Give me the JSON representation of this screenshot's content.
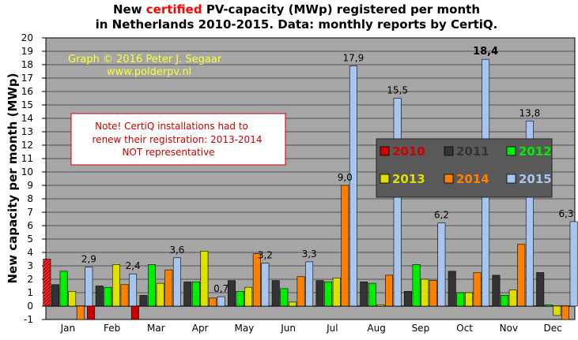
{
  "title": {
    "line1_pre": "New ",
    "line1_red": "certified",
    "line1_post": " PV-capacity (MWp) registered per month",
    "line2": "in Netherlands 2010-2015. Data: monthly  reports by CertiQ."
  },
  "credit": {
    "line1": "Graph © 2016 Peter J. Segaar",
    "line2": "www.polderpv.nl"
  },
  "note": {
    "line1": "Note! CertiQ installations  had to",
    "line2": "renew their registration: 2013-2014",
    "line3": "NOT representative"
  },
  "colors": {
    "plot_bg": "#a6a6a6",
    "legend_bg": "#595959",
    "2010": "#cc0000",
    "2011": "#333333",
    "2012": "#00ee00",
    "2013": "#e0e000",
    "2014": "#ff7f00",
    "2015": "#a6c6f0"
  },
  "chart_data": {
    "type": "bar",
    "ylabel": "New capacity per month (MWp)",
    "ylim": [
      -1,
      20
    ],
    "yticks": [
      "-1",
      "0",
      "1",
      "2",
      "3",
      "4",
      "5",
      "6",
      "7",
      "8",
      "9",
      "10",
      "11",
      "12",
      "13",
      "14",
      "15",
      "16",
      "17",
      "18",
      "19",
      "20"
    ],
    "grid": true,
    "legend_placement": "center-right",
    "categories": [
      "Jan",
      "Feb",
      "Mar",
      "Apr",
      "May",
      "Jun",
      "Jul",
      "Aug",
      "Sep",
      "Oct",
      "Nov",
      "Dec"
    ],
    "series": [
      {
        "name": "2010",
        "values": [
          3.5,
          -1.0,
          -1.0,
          null,
          null,
          null,
          null,
          null,
          null,
          null,
          null,
          null
        ]
      },
      {
        "name": "2011",
        "values": [
          1.6,
          1.5,
          0.8,
          1.8,
          1.9,
          1.9,
          1.9,
          1.8,
          1.1,
          2.6,
          2.3,
          2.5
        ]
      },
      {
        "name": "2012",
        "values": [
          2.6,
          1.4,
          3.1,
          1.8,
          1.1,
          1.3,
          1.8,
          1.7,
          3.1,
          1.0,
          0.8,
          0.1
        ]
      },
      {
        "name": "2013",
        "values": [
          1.1,
          3.1,
          1.7,
          4.1,
          1.4,
          0.3,
          2.1,
          0.1,
          2.0,
          1.0,
          1.2,
          -0.7
        ]
      },
      {
        "name": "2014",
        "values": [
          -1.0,
          1.6,
          2.7,
          0.6,
          3.9,
          2.2,
          9.0,
          2.3,
          1.9,
          2.5,
          4.6,
          -1.0
        ]
      },
      {
        "name": "2015",
        "values": [
          2.9,
          2.4,
          3.6,
          0.7,
          3.2,
          3.3,
          17.9,
          15.5,
          6.2,
          18.4,
          13.8,
          6.3
        ]
      }
    ],
    "data_labels": [
      {
        "series": "2015",
        "category": "Jan",
        "text": "2,9"
      },
      {
        "series": "2015",
        "category": "Feb",
        "text": "2,4"
      },
      {
        "series": "2015",
        "category": "Mar",
        "text": "3,6"
      },
      {
        "series": "2015",
        "category": "Apr",
        "text": "0,7"
      },
      {
        "series": "2015",
        "category": "May",
        "text": "3,2"
      },
      {
        "series": "2015",
        "category": "Jun",
        "text": "3,3"
      },
      {
        "series": "2015",
        "category": "Jul",
        "text": "17,9"
      },
      {
        "series": "2014",
        "category": "Jul",
        "text": "9,0"
      },
      {
        "series": "2015",
        "category": "Aug",
        "text": "15,5"
      },
      {
        "series": "2015",
        "category": "Sep",
        "text": "6,2"
      },
      {
        "series": "2015",
        "category": "Oct",
        "text": "18,4",
        "bold": true
      },
      {
        "series": "2015",
        "category": "Nov",
        "text": "13,8"
      },
      {
        "series": "2015",
        "category": "Dec",
        "text": "6,3"
      }
    ]
  }
}
